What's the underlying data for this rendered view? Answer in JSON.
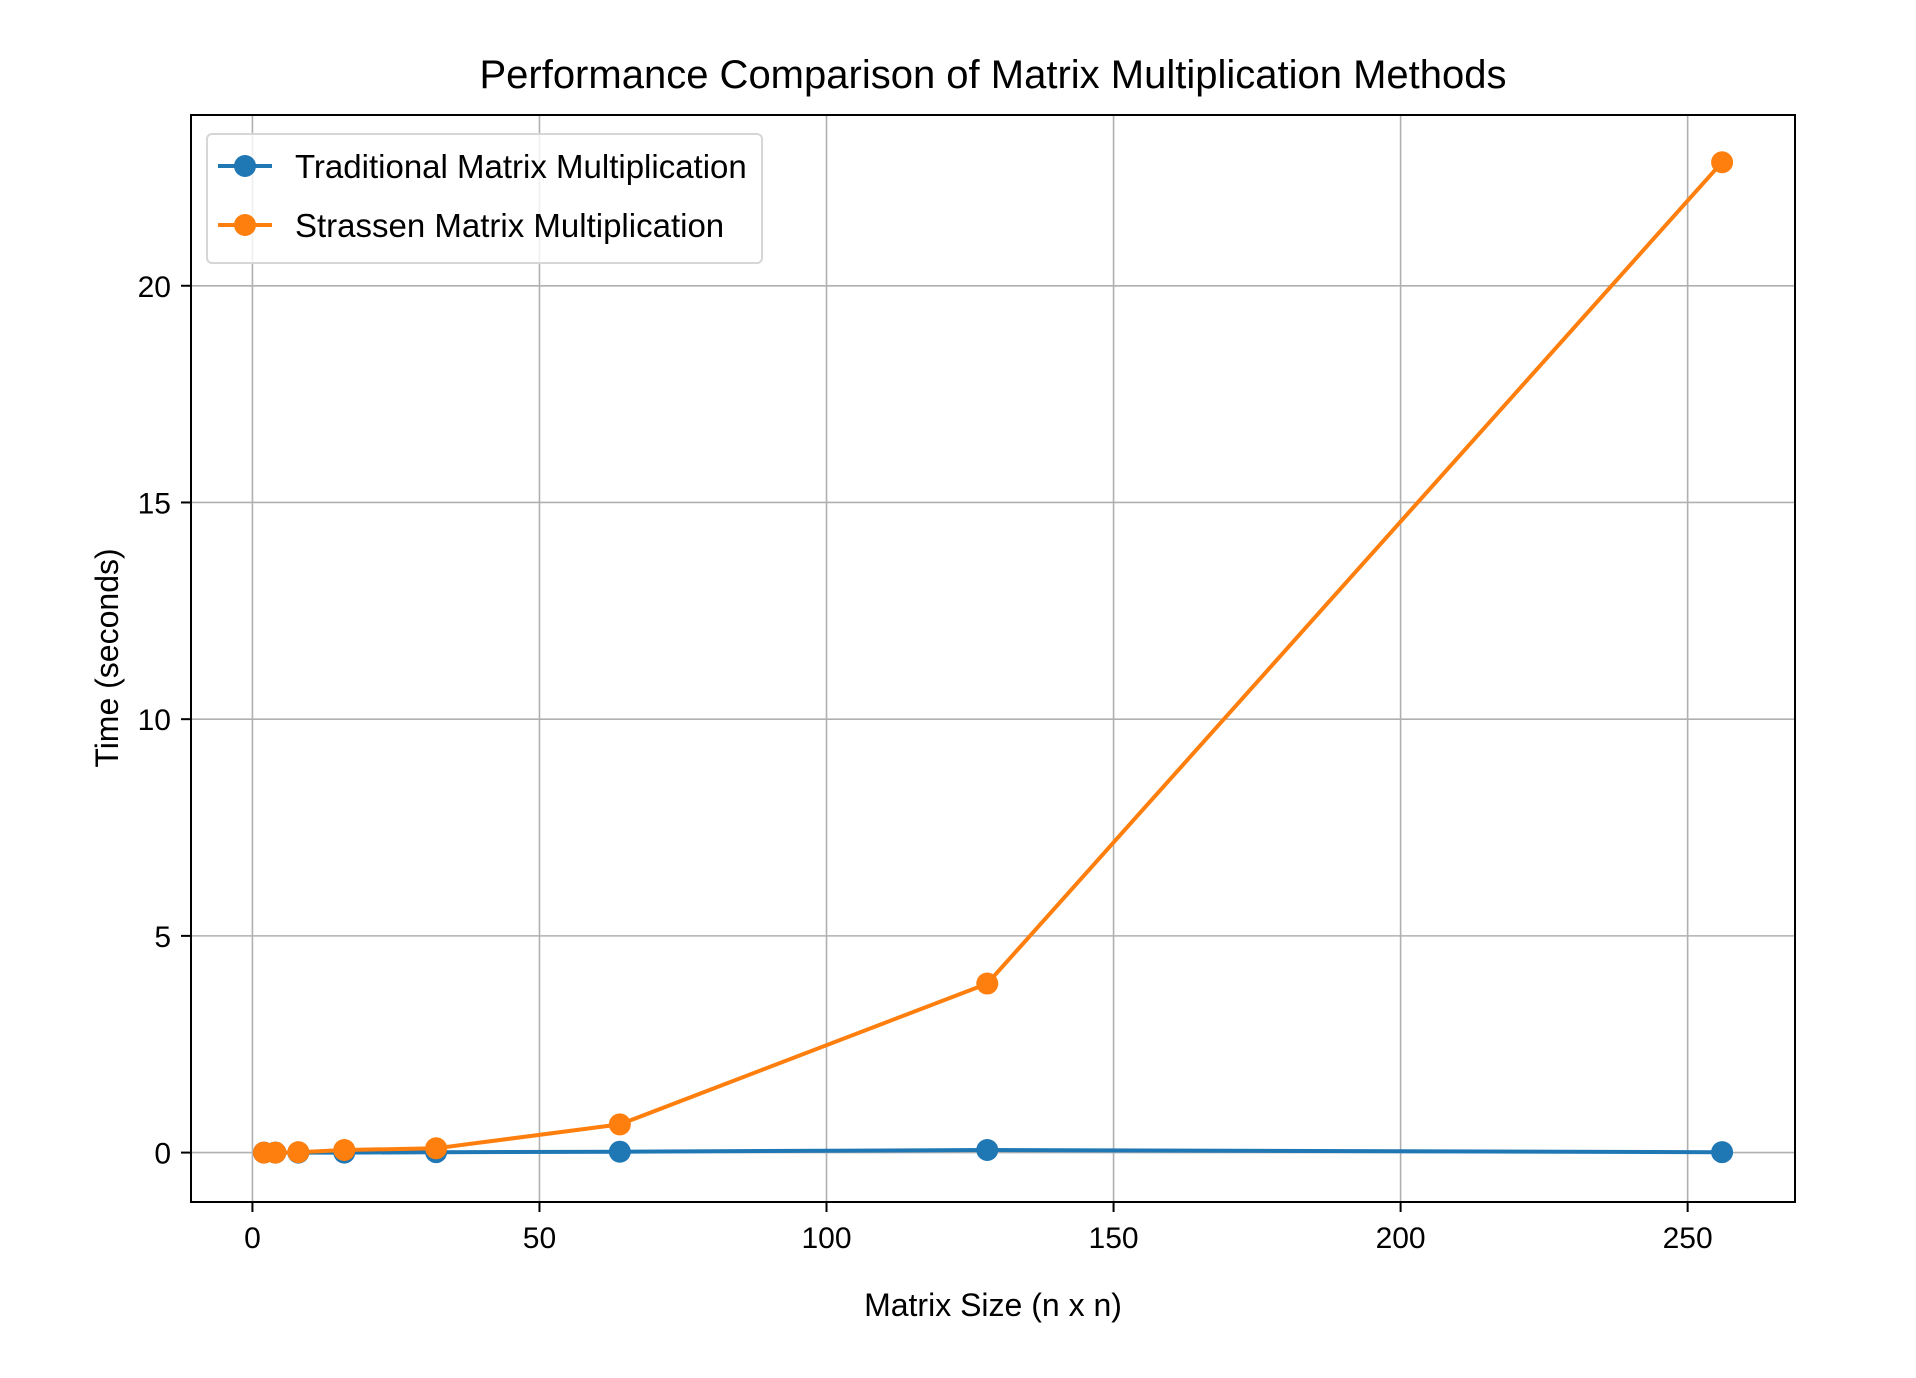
{
  "chart_data": {
    "type": "line",
    "title": "Performance Comparison of Matrix Multiplication Methods",
    "xlabel": "Matrix Size (n x n)",
    "ylabel": "Time (seconds)",
    "xlim": [
      -10.7,
      268.7
    ],
    "ylim": [
      -1.14,
      23.94
    ],
    "xticks": [
      0,
      50,
      100,
      150,
      200,
      250
    ],
    "yticks": [
      0,
      5,
      10,
      15,
      20
    ],
    "grid": true,
    "legend_position": "upper-left",
    "x": [
      2,
      4,
      8,
      16,
      32,
      64,
      128,
      256
    ],
    "series": [
      {
        "name": "Traditional Matrix Multiplication",
        "color": "#1f77b4",
        "values": [
          0.0,
          0.0,
          0.0,
          0.0,
          0.01,
          0.02,
          0.06,
          0.01
        ]
      },
      {
        "name": "Strassen Matrix Multiplication",
        "color": "#ff7f0e",
        "values": [
          0.0,
          0.0,
          0.01,
          0.06,
          0.1,
          0.65,
          3.9,
          22.85
        ]
      }
    ]
  }
}
